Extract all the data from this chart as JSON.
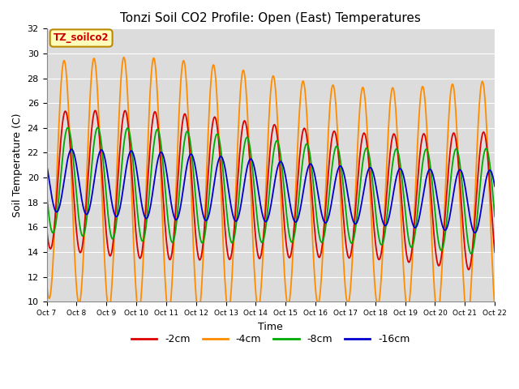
{
  "title": "Tonzi Soil CO2 Profile: Open (East) Temperatures",
  "xlabel": "Time",
  "ylabel": "Soil Temperature (C)",
  "ylim": [
    10,
    32
  ],
  "xlim": [
    0,
    360
  ],
  "bg_color": "#dcdcdc",
  "series_labels": [
    "-2cm",
    "-4cm",
    "-8cm",
    "-16cm"
  ],
  "series_colors": [
    "#dd0000",
    "#ff8c00",
    "#00aa00",
    "#0000cc"
  ],
  "tick_labels": [
    "Oct 7",
    "Oct 8",
    "Oct 9",
    "Oct 10",
    "Oct 11",
    "Oct 12",
    "Oct 13",
    "Oct 14",
    "Oct 15",
    "Oct 16",
    "Oct 17",
    "Oct 18",
    "Oct 19",
    "Oct 20",
    "Oct 21",
    "Oct 22"
  ],
  "tick_positions": [
    0,
    24,
    48,
    72,
    96,
    120,
    144,
    168,
    192,
    216,
    240,
    264,
    288,
    312,
    336,
    360
  ],
  "yticks": [
    10,
    12,
    14,
    16,
    18,
    20,
    22,
    24,
    26,
    28,
    30,
    32
  ]
}
